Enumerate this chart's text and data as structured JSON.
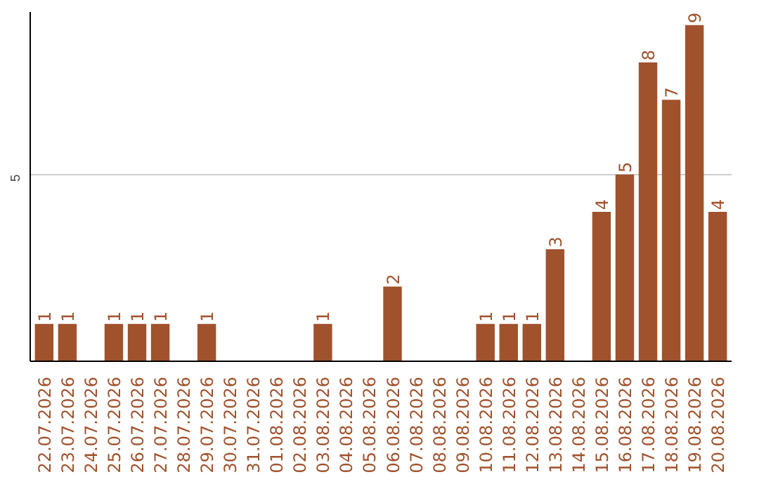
{
  "chart_data": {
    "type": "bar",
    "categories": [
      "22.07.2026",
      "23.07.2026",
      "24.07.2026",
      "25.07.2026",
      "26.07.2026",
      "27.07.2026",
      "28.07.2026",
      "29.07.2026",
      "30.07.2026",
      "31.07.2026",
      "01.08.2026",
      "02.08.2026",
      "03.08.2026",
      "04.08.2026",
      "05.08.2026",
      "06.08.2026",
      "07.08.2026",
      "08.08.2026",
      "09.08.2026",
      "10.08.2026",
      "11.08.2026",
      "12.08.2026",
      "13.08.2026",
      "14.08.2026",
      "15.08.2026",
      "16.08.2026",
      "17.08.2026",
      "18.08.2026",
      "19.08.2026",
      "20.08.2026"
    ],
    "values": [
      1,
      1,
      0,
      1,
      1,
      1,
      0,
      1,
      0,
      0,
      0,
      0,
      1,
      0,
      0,
      2,
      0,
      0,
      0,
      1,
      1,
      1,
      3,
      0,
      4,
      5,
      8,
      7,
      9,
      4
    ],
    "value_labels": [
      "1",
      "1",
      null,
      "1",
      "1",
      "1",
      null,
      "1",
      null,
      null,
      null,
      null,
      "1",
      null,
      null,
      "2",
      null,
      null,
      null,
      "1",
      "1",
      "1",
      "3",
      null,
      "4",
      "5",
      "8",
      "7",
      "9",
      "4"
    ],
    "color": "#a0522d",
    "ylim": [
      0,
      9.35
    ],
    "yticks": [
      5
    ],
    "grid": "y"
  }
}
